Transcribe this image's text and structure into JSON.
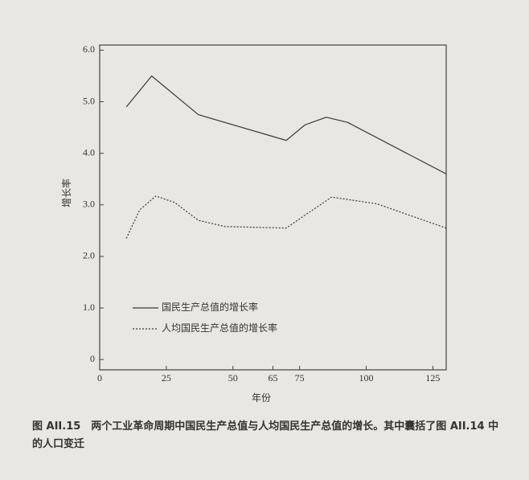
{
  "chart_data": {
    "type": "line",
    "y_label": "增长率",
    "x_label": "年份",
    "x_lim_note": null,
    "xlim": [
      0,
      130
    ],
    "xticks": [
      0,
      25,
      50,
      65,
      75,
      100,
      125
    ],
    "ylim": [
      -0.2,
      6.1
    ],
    "yticks": [
      0,
      {
        "value": 1,
        "label": "1.0"
      },
      {
        "value": 2,
        "label": "2.0"
      },
      {
        "value": 3,
        "label": "3.0"
      },
      {
        "value": 4,
        "label": "4.0"
      },
      {
        "value": 5,
        "label": "5.0"
      },
      {
        "value": 6,
        "label": "6.0"
      }
    ],
    "series": [
      {
        "name": "国民生产总值的增长率",
        "color": "#3a3a3a",
        "style": "solid",
        "x": [
          10,
          19.5,
          37,
          70,
          77,
          85,
          93,
          130
        ],
        "values": [
          4.9,
          5.5,
          4.75,
          4.25,
          4.55,
          4.7,
          4.6,
          3.6
        ]
      },
      {
        "name": "人均国民生产总值的增长率",
        "color": "#3a3a3a",
        "style": "dashed",
        "x": [
          10,
          15,
          21,
          28,
          37,
          47,
          70,
          77,
          87,
          104,
          130
        ],
        "values": [
          2.35,
          2.9,
          3.17,
          3.05,
          2.7,
          2.58,
          2.55,
          2.8,
          3.15,
          3.02,
          2.55
        ]
      }
    ],
    "legend": "inside-lower-left",
    "caption": "图 AII.15　两个工业革命周期中国民生产总值与人均国民生产总值的增长。其中囊括了图 AII.14 中的人口变迁"
  }
}
